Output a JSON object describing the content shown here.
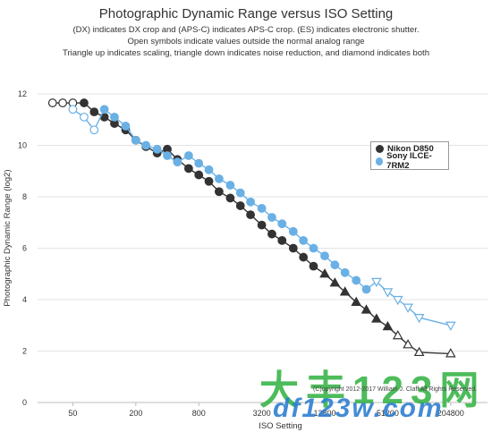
{
  "chart_data": {
    "type": "line",
    "title": "Photographic Dynamic Range versus ISO Setting",
    "subtitle_lines": [
      "(DX) indicates DX crop and (APS-C) indicates APS-C crop. (ES) indicates electronic shutter.",
      "Open symbols indicate values outside the normal analog range",
      "Triangle up indicates scaling, triangle down indicates noise reduction, and diamond indicates both"
    ],
    "xlabel": "ISO Setting",
    "ylabel": "Photographic Dynamic Range (log2)",
    "x_scale": "log2",
    "xlim": [
      23,
      460800
    ],
    "ylim": [
      0,
      12.8
    ],
    "x_ticks": [
      50,
      200,
      800,
      3200,
      12800,
      51200,
      204800
    ],
    "y_ticks": [
      0,
      2,
      4,
      6,
      8,
      10,
      12
    ],
    "grid": "horizontal",
    "legend_position": "right",
    "series": [
      {
        "name": "Nikon D850",
        "color": "#333333",
        "points": [
          {
            "x": 32,
            "y": 11.65,
            "marker": "open-circle"
          },
          {
            "x": 40,
            "y": 11.65,
            "marker": "open-circle"
          },
          {
            "x": 50,
            "y": 11.65,
            "marker": "open-circle"
          },
          {
            "x": 64,
            "y": 11.65,
            "marker": "circle"
          },
          {
            "x": 80,
            "y": 11.3,
            "marker": "circle"
          },
          {
            "x": 100,
            "y": 11.1,
            "marker": "circle"
          },
          {
            "x": 125,
            "y": 10.85,
            "marker": "circle"
          },
          {
            "x": 160,
            "y": 10.6,
            "marker": "circle"
          },
          {
            "x": 200,
            "y": 10.2,
            "marker": "circle"
          },
          {
            "x": 250,
            "y": 9.95,
            "marker": "circle"
          },
          {
            "x": 320,
            "y": 9.7,
            "marker": "circle"
          },
          {
            "x": 400,
            "y": 9.85,
            "marker": "circle"
          },
          {
            "x": 500,
            "y": 9.45,
            "marker": "circle"
          },
          {
            "x": 640,
            "y": 9.1,
            "marker": "circle"
          },
          {
            "x": 800,
            "y": 8.85,
            "marker": "circle"
          },
          {
            "x": 1000,
            "y": 8.6,
            "marker": "circle"
          },
          {
            "x": 1250,
            "y": 8.2,
            "marker": "circle"
          },
          {
            "x": 1600,
            "y": 7.95,
            "marker": "circle"
          },
          {
            "x": 2000,
            "y": 7.65,
            "marker": "circle"
          },
          {
            "x": 2500,
            "y": 7.3,
            "marker": "circle"
          },
          {
            "x": 3200,
            "y": 6.9,
            "marker": "circle"
          },
          {
            "x": 4000,
            "y": 6.55,
            "marker": "circle"
          },
          {
            "x": 5000,
            "y": 6.3,
            "marker": "circle"
          },
          {
            "x": 6400,
            "y": 6.0,
            "marker": "circle"
          },
          {
            "x": 8000,
            "y": 5.65,
            "marker": "circle"
          },
          {
            "x": 10000,
            "y": 5.3,
            "marker": "circle"
          },
          {
            "x": 12800,
            "y": 5.0,
            "marker": "triangle-up"
          },
          {
            "x": 16000,
            "y": 4.65,
            "marker": "triangle-up"
          },
          {
            "x": 20000,
            "y": 4.3,
            "marker": "triangle-up"
          },
          {
            "x": 25600,
            "y": 3.9,
            "marker": "triangle-up"
          },
          {
            "x": 32000,
            "y": 3.6,
            "marker": "triangle-up"
          },
          {
            "x": 40000,
            "y": 3.25,
            "marker": "triangle-up"
          },
          {
            "x": 51200,
            "y": 2.95,
            "marker": "triangle-up"
          },
          {
            "x": 64000,
            "y": 2.6,
            "marker": "open-triangle-up"
          },
          {
            "x": 80000,
            "y": 2.25,
            "marker": "open-triangle-up"
          },
          {
            "x": 102400,
            "y": 1.95,
            "marker": "open-triangle-up"
          },
          {
            "x": 204800,
            "y": 1.9,
            "marker": "open-triangle-up"
          }
        ]
      },
      {
        "name": "Sony ILCE-7RM2",
        "color": "#6ab0e4",
        "points": [
          {
            "x": 50,
            "y": 11.4,
            "marker": "open-circle"
          },
          {
            "x": 64,
            "y": 11.1,
            "marker": "open-circle"
          },
          {
            "x": 80,
            "y": 10.6,
            "marker": "open-circle"
          },
          {
            "x": 100,
            "y": 11.4,
            "marker": "circle"
          },
          {
            "x": 125,
            "y": 11.1,
            "marker": "circle"
          },
          {
            "x": 160,
            "y": 10.75,
            "marker": "circle"
          },
          {
            "x": 200,
            "y": 10.2,
            "marker": "circle"
          },
          {
            "x": 250,
            "y": 10.0,
            "marker": "circle"
          },
          {
            "x": 320,
            "y": 9.85,
            "marker": "circle"
          },
          {
            "x": 400,
            "y": 9.6,
            "marker": "circle"
          },
          {
            "x": 500,
            "y": 9.35,
            "marker": "circle"
          },
          {
            "x": 640,
            "y": 9.6,
            "marker": "circle"
          },
          {
            "x": 800,
            "y": 9.3,
            "marker": "circle"
          },
          {
            "x": 1000,
            "y": 9.05,
            "marker": "circle"
          },
          {
            "x": 1250,
            "y": 8.7,
            "marker": "circle"
          },
          {
            "x": 1600,
            "y": 8.45,
            "marker": "circle"
          },
          {
            "x": 2000,
            "y": 8.15,
            "marker": "circle"
          },
          {
            "x": 2500,
            "y": 7.8,
            "marker": "circle"
          },
          {
            "x": 3200,
            "y": 7.55,
            "marker": "circle"
          },
          {
            "x": 4000,
            "y": 7.2,
            "marker": "circle"
          },
          {
            "x": 5000,
            "y": 6.95,
            "marker": "circle"
          },
          {
            "x": 6400,
            "y": 6.65,
            "marker": "circle"
          },
          {
            "x": 8000,
            "y": 6.3,
            "marker": "circle"
          },
          {
            "x": 10000,
            "y": 6.0,
            "marker": "circle"
          },
          {
            "x": 12800,
            "y": 5.7,
            "marker": "circle"
          },
          {
            "x": 16000,
            "y": 5.35,
            "marker": "circle"
          },
          {
            "x": 20000,
            "y": 5.05,
            "marker": "circle"
          },
          {
            "x": 25600,
            "y": 4.75,
            "marker": "circle"
          },
          {
            "x": 32000,
            "y": 4.4,
            "marker": "circle"
          },
          {
            "x": 40000,
            "y": 4.7,
            "marker": "open-triangle-down"
          },
          {
            "x": 51200,
            "y": 4.3,
            "marker": "open-triangle-down"
          },
          {
            "x": 64000,
            "y": 4.0,
            "marker": "open-triangle-down"
          },
          {
            "x": 80000,
            "y": 3.7,
            "marker": "open-triangle-down"
          },
          {
            "x": 102400,
            "y": 3.3,
            "marker": "open-triangle-down"
          },
          {
            "x": 204800,
            "y": 3.0,
            "marker": "open-triangle-down"
          }
        ]
      }
    ]
  },
  "copyright": "(C)opyright 2012-2017 William J. Claff All Rights Reserved.",
  "watermark_top": "大丰123网",
  "watermark_bottom": "df123w.com"
}
